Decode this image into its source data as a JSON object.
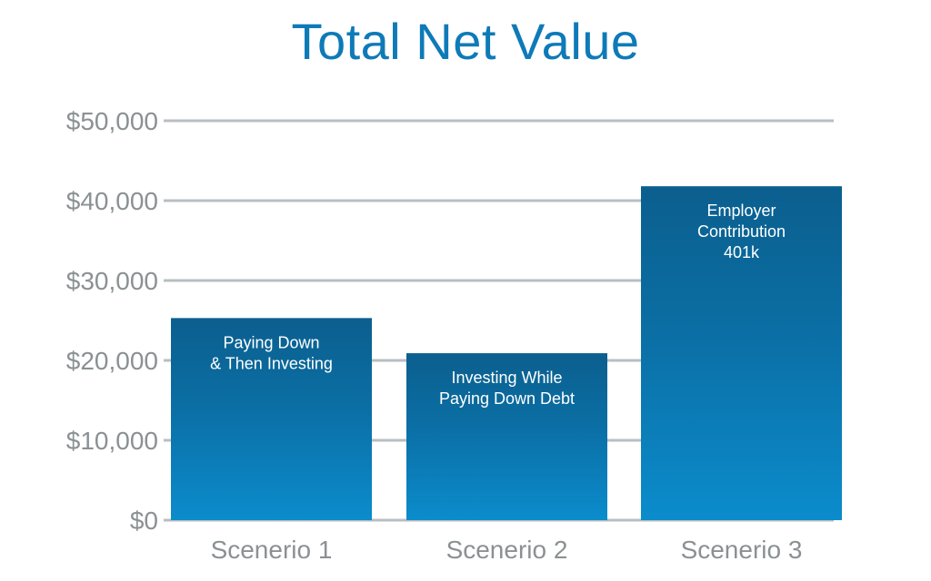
{
  "colors": {
    "title": "#0e7ab8",
    "grid": "#b9bec0",
    "axis_text": "#8b9193",
    "bar_top": "#0b5f8e",
    "bar_bottom": "#0b8ccc",
    "bar_label": "#ffffff"
  },
  "chart_data": {
    "type": "bar",
    "title": "Total Net Value",
    "xlabel": "",
    "ylabel": "",
    "categories": [
      "Scenerio 1",
      "Scenerio 2",
      "Scenerio 3"
    ],
    "values": [
      25300,
      20900,
      41800
    ],
    "bar_labels": [
      [
        "Paying Down",
        "& Then Investing"
      ],
      [
        "Investing While",
        "Paying Down Debt"
      ],
      [
        "Employer",
        "Contribution",
        "401k"
      ]
    ],
    "ylim": [
      0,
      50000
    ],
    "yticks": [
      0,
      10000,
      20000,
      30000,
      40000,
      50000
    ],
    "ytick_labels": [
      "$0",
      "$10,000",
      "$20,000",
      "$30,000",
      "$40,000",
      "$50,000"
    ],
    "grid": true,
    "legend": "none"
  }
}
